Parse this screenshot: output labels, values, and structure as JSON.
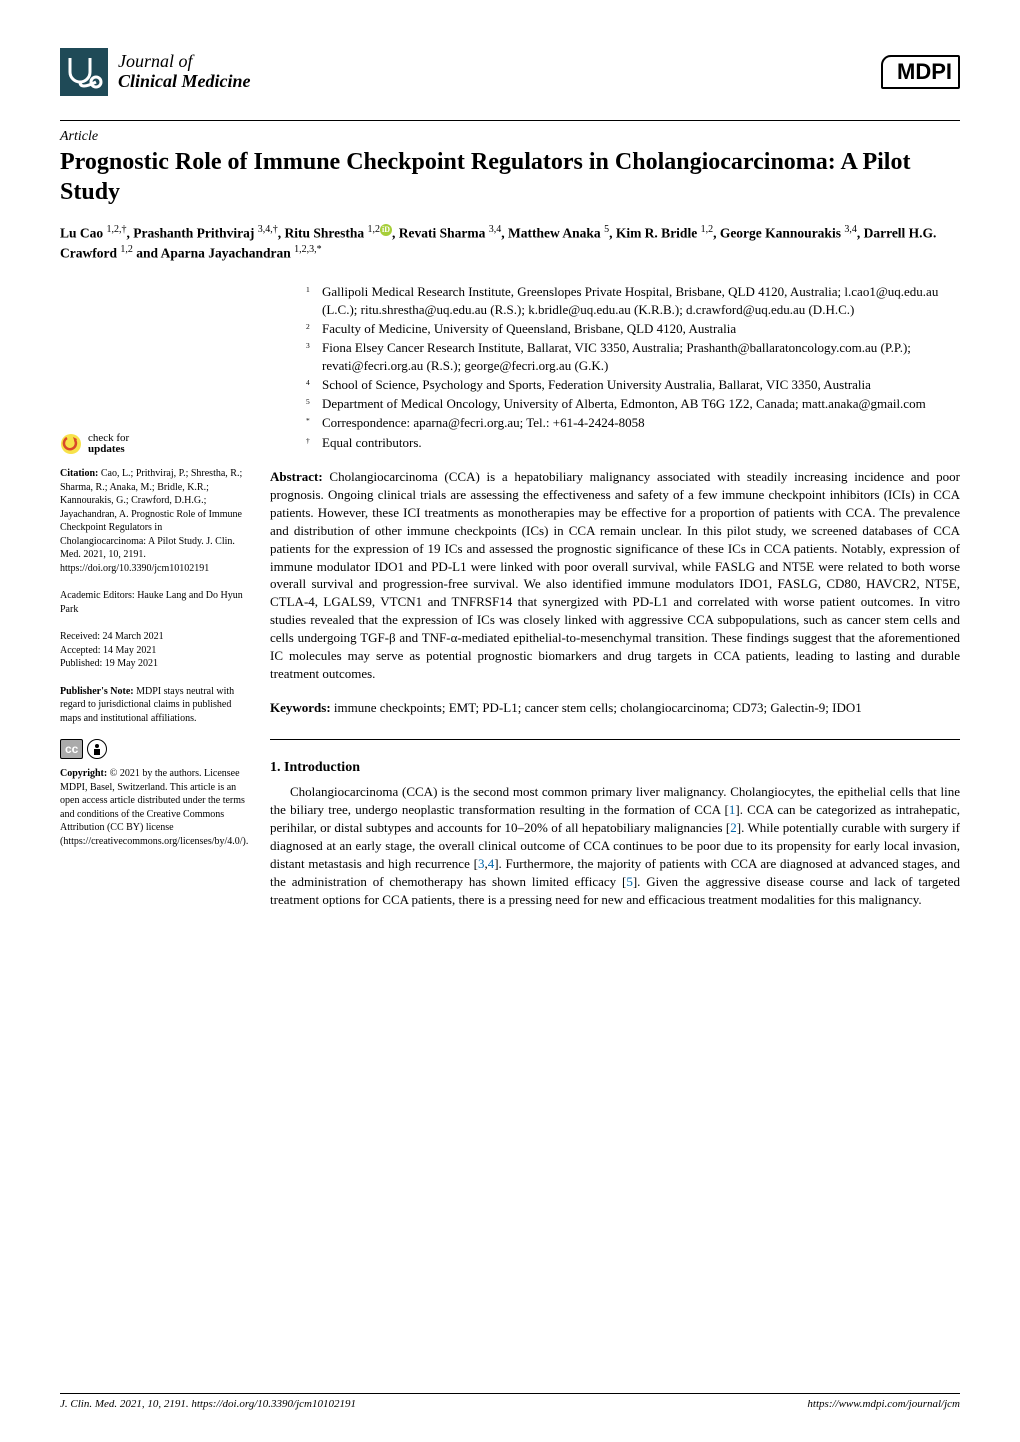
{
  "journal": {
    "line1": "Journal of",
    "line2": "Clinical Medicine"
  },
  "publisher_logo": "MDPI",
  "article_type": "Article",
  "title": "Prognostic Role of Immune Checkpoint Regulators in Cholangiocarcinoma: A Pilot Study",
  "authors_html": "Lu Cao <sup>1,2,†</sup>, Prashanth Prithviraj <sup>3,4,†</sup>, Ritu Shrestha <sup>1,2</sup><span class=\"orcid\" data-name=\"orcid-icon\" data-interactable=\"false\">iD</span>, Revati Sharma <sup>3,4</sup>, Matthew Anaka <sup>5</sup>, Kim R. Bridle <sup>1,2</sup>, George Kannourakis <sup>3,4</sup>, Darrell H.G. Crawford <sup>1,2</sup> and Aparna Jayachandran <sup>1,2,3,*</sup>",
  "affiliations": [
    {
      "sup": "1",
      "text": "Gallipoli Medical Research Institute, Greenslopes Private Hospital, Brisbane, QLD 4120, Australia; l.cao1@uq.edu.au (L.C.); ritu.shrestha@uq.edu.au (R.S.); k.bridle@uq.edu.au (K.R.B.); d.crawford@uq.edu.au (D.H.C.)"
    },
    {
      "sup": "2",
      "text": "Faculty of Medicine, University of Queensland, Brisbane, QLD 4120, Australia"
    },
    {
      "sup": "3",
      "text": "Fiona Elsey Cancer Research Institute, Ballarat, VIC 3350, Australia; Prashanth@ballaratoncology.com.au (P.P.); revati@fecri.org.au (R.S.); george@fecri.org.au (G.K.)"
    },
    {
      "sup": "4",
      "text": "School of Science, Psychology and Sports, Federation University Australia, Ballarat, VIC 3350, Australia"
    },
    {
      "sup": "5",
      "text": "Department of Medical Oncology, University of Alberta, Edmonton, AB T6G 1Z2, Canada; matt.anaka@gmail.com"
    },
    {
      "sup": "*",
      "text": "Correspondence: aparna@fecri.org.au; Tel.: +61-4-2424-8058"
    },
    {
      "sup": "†",
      "text": "Equal contributors."
    }
  ],
  "abstract": {
    "label": "Abstract:",
    "text": " Cholangiocarcinoma (CCA) is a hepatobiliary malignancy associated with steadily increasing incidence and poor prognosis. Ongoing clinical trials are assessing the effectiveness and safety of a few immune checkpoint inhibitors (ICIs) in CCA patients. However, these ICI treatments as monotherapies may be effective for a proportion of patients with CCA. The prevalence and distribution of other immune checkpoints (ICs) in CCA remain unclear. In this pilot study, we screened databases of CCA patients for the expression of 19 ICs and assessed the prognostic significance of these ICs in CCA patients. Notably, expression of immune modulator IDO1 and PD-L1 were linked with poor overall survival, while FASLG and NT5E were related to both worse overall survival and progression-free survival. We also identified immune modulators IDO1, FASLG, CD80, HAVCR2, NT5E, CTLA-4, LGALS9, VTCN1 and TNFRSF14 that synergized with PD-L1 and correlated with worse patient outcomes. In vitro studies revealed that the expression of ICs was closely linked with aggressive CCA subpopulations, such as cancer stem cells and cells undergoing TGF-β and TNF-α-mediated epithelial-to-mesenchymal transition. These findings suggest that the aforementioned IC molecules may serve as potential prognostic biomarkers and drug targets in CCA patients, leading to lasting and durable treatment outcomes."
  },
  "keywords": {
    "label": "Keywords:",
    "text": " immune checkpoints; EMT; PD-L1; cancer stem cells; cholangiocarcinoma; CD73; Galectin-9; IDO1"
  },
  "left": {
    "check": {
      "l1": "check for",
      "l2": "updates"
    },
    "citation": "Citation: Cao, L.; Prithviraj, P.; Shrestha, R.; Sharma, R.; Anaka, M.; Bridle, K.R.; Kannourakis, G.; Crawford, D.H.G.; Jayachandran, A. Prognostic Role of Immune Checkpoint Regulators in Cholangiocarcinoma: A Pilot Study. J. Clin. Med. 2021, 10, 2191. https://doi.org/10.3390/jcm10102191",
    "editors": "Academic Editors: Hauke Lang and Do Hyun Park",
    "received": "Received: 24 March 2021",
    "accepted": "Accepted: 14 May 2021",
    "published": "Published: 19 May 2021",
    "publishers_note": "Publisher's Note: MDPI stays neutral with regard to jurisdictional claims in published maps and institutional affiliations.",
    "copyright": "Copyright: © 2021 by the authors. Licensee MDPI, Basel, Switzerland. This article is an open access article distributed under the terms and conditions of the Creative Commons Attribution (CC BY) license (https://creativecommons.org/licenses/by/4.0/)."
  },
  "section": {
    "heading": "1. Introduction"
  },
  "intro_html": "Cholangiocarcinoma (CCA) is the second most common primary liver malignancy. Cholangiocytes, the epithelial cells that line the biliary tree, undergo neoplastic transformation resulting in the formation of CCA [<span class=\"ref\">1</span>]. CCA can be categorized as intrahepatic, perihilar, or distal subtypes and accounts for 10–20% of all hepatobiliary malignancies [<span class=\"ref\">2</span>]. While potentially curable with surgery if diagnosed at an early stage, the overall clinical outcome of CCA continues to be poor due to its propensity for early local invasion, distant metastasis and high recurrence [<span class=\"ref\">3</span>,<span class=\"ref\">4</span>]. Furthermore, the majority of patients with CCA are diagnosed at advanced stages, and the administration of chemotherapy has shown limited efficacy [<span class=\"ref\">5</span>]. Given the aggressive disease course and lack of targeted treatment options for CCA patients, there is a pressing need for new and efficacious treatment modalities for this malignancy.",
  "footer": {
    "left": "J. Clin. Med. 2021, 10, 2191. https://doi.org/10.3390/jcm10102191",
    "right": "https://www.mdpi.com/journal/jcm"
  },
  "colors": {
    "text": "#000000",
    "link": "#0066aa",
    "orcid": "#a6ce39",
    "check_arrow": "#d9492a",
    "check_bg": "#f7e24a",
    "steth1": "#3a7a8f",
    "steth2": "#1f4a57"
  }
}
